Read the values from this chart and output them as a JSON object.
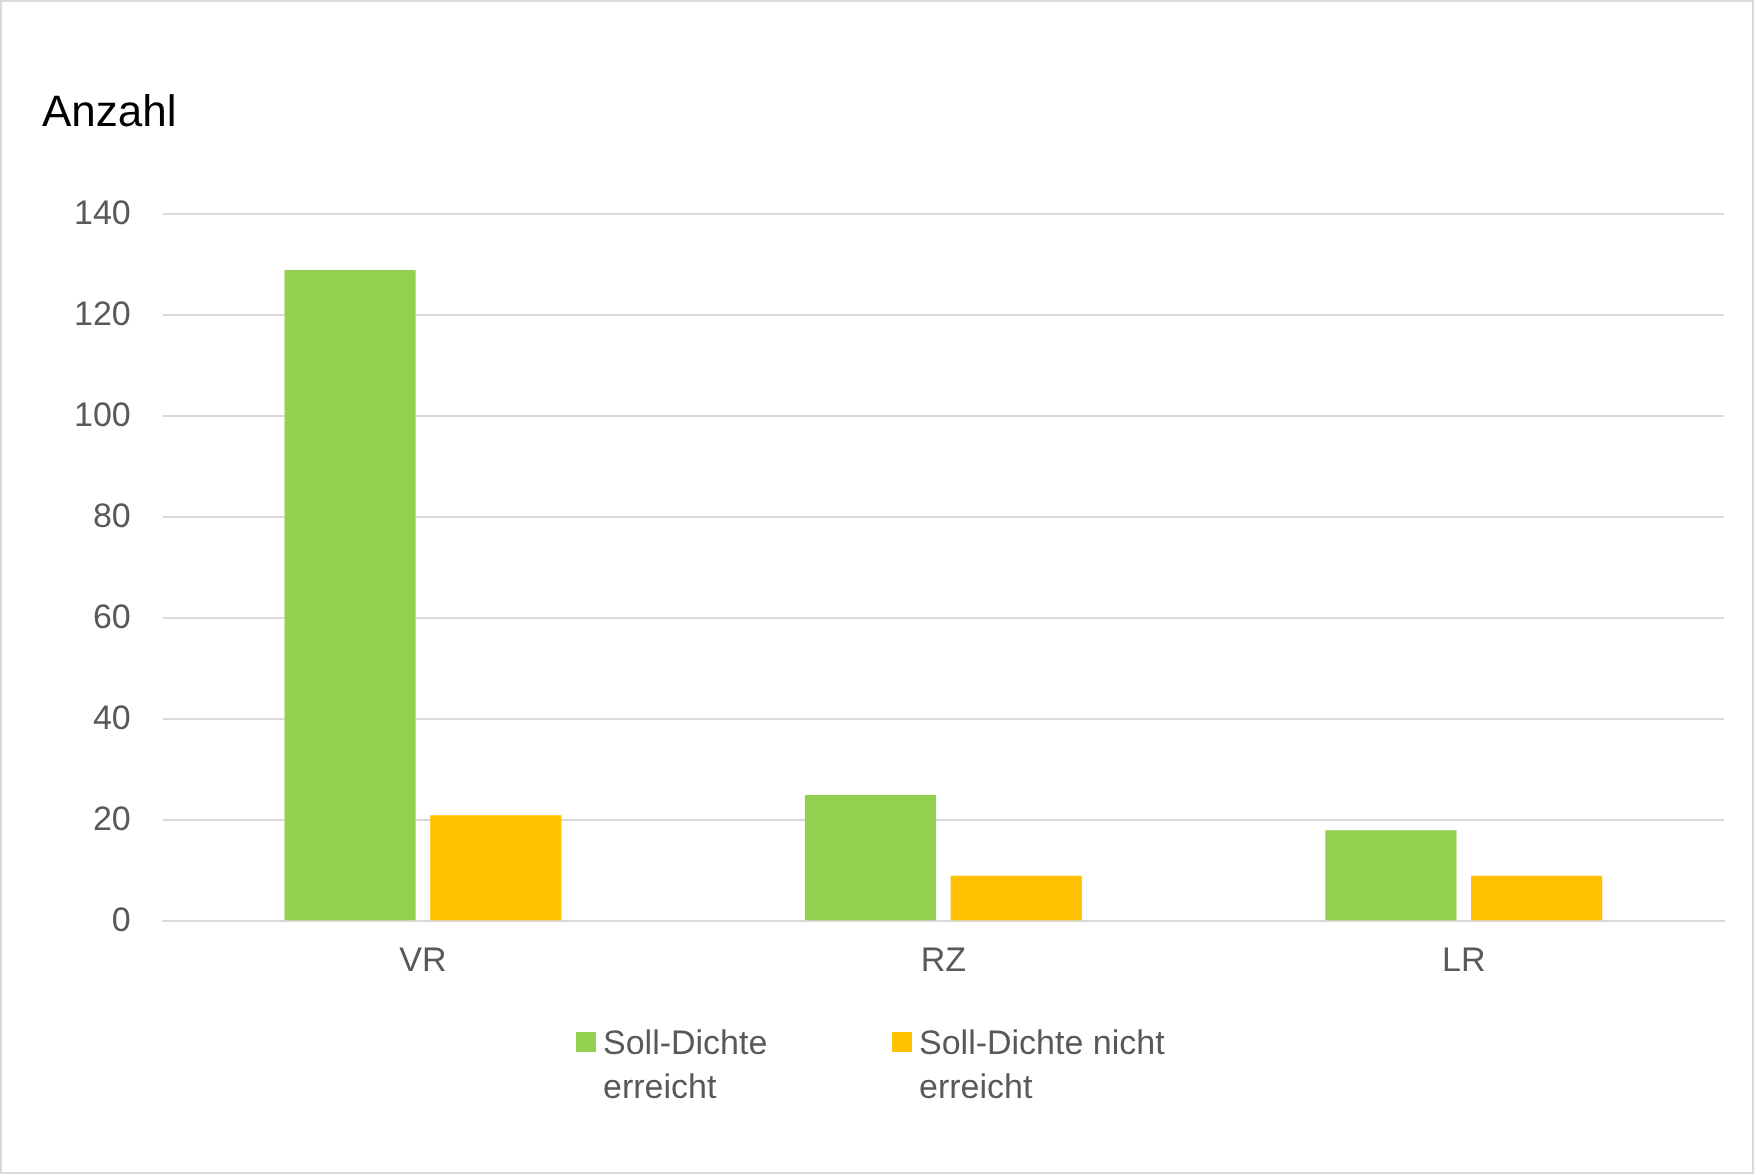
{
  "chart_data": {
    "type": "bar",
    "ylabel": "Anzahl",
    "categories": [
      "VR",
      "RZ",
      "LR"
    ],
    "series": [
      {
        "name": "Soll-Dichte erreicht",
        "color": "#92d050",
        "values": [
          129,
          25,
          18
        ]
      },
      {
        "name": "Soll-Dichte nicht erreicht",
        "color": "#ffc000",
        "values": [
          21,
          9,
          9
        ]
      }
    ],
    "ylim": [
      0,
      140
    ],
    "yticks": [
      0,
      20,
      40,
      60,
      80,
      100,
      120,
      140
    ],
    "grid": "y",
    "legend": "bottom"
  }
}
